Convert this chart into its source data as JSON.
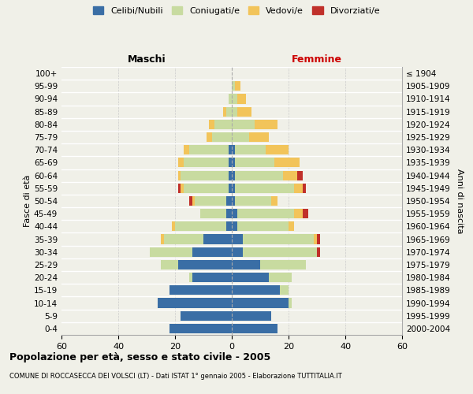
{
  "age_groups": [
    "0-4",
    "5-9",
    "10-14",
    "15-19",
    "20-24",
    "25-29",
    "30-34",
    "35-39",
    "40-44",
    "45-49",
    "50-54",
    "55-59",
    "60-64",
    "65-69",
    "70-74",
    "75-79",
    "80-84",
    "85-89",
    "90-94",
    "95-99",
    "100+"
  ],
  "birth_years": [
    "2000-2004",
    "1995-1999",
    "1990-1994",
    "1985-1989",
    "1980-1984",
    "1975-1979",
    "1970-1974",
    "1965-1969",
    "1960-1964",
    "1955-1959",
    "1950-1954",
    "1945-1949",
    "1940-1944",
    "1935-1939",
    "1930-1934",
    "1925-1929",
    "1920-1924",
    "1915-1919",
    "1910-1914",
    "1905-1909",
    "≤ 1904"
  ],
  "male": {
    "celibi": [
      22,
      18,
      26,
      22,
      14,
      19,
      14,
      10,
      2,
      2,
      2,
      1,
      1,
      1,
      1,
      0,
      0,
      0,
      0,
      0,
      0
    ],
    "coniugati": [
      0,
      0,
      0,
      0,
      1,
      6,
      15,
      14,
      18,
      9,
      11,
      16,
      17,
      16,
      14,
      7,
      6,
      2,
      1,
      0,
      0
    ],
    "vedovi": [
      0,
      0,
      0,
      0,
      0,
      0,
      0,
      1,
      1,
      0,
      1,
      1,
      1,
      2,
      2,
      2,
      2,
      1,
      0,
      0,
      0
    ],
    "divorziati": [
      0,
      0,
      0,
      0,
      0,
      0,
      0,
      0,
      0,
      0,
      1,
      1,
      0,
      0,
      0,
      0,
      0,
      0,
      0,
      0,
      0
    ]
  },
  "female": {
    "nubili": [
      16,
      14,
      20,
      17,
      13,
      10,
      4,
      4,
      2,
      2,
      1,
      1,
      1,
      1,
      1,
      0,
      0,
      0,
      0,
      0,
      0
    ],
    "coniugate": [
      0,
      0,
      1,
      3,
      8,
      16,
      26,
      25,
      18,
      20,
      13,
      21,
      17,
      14,
      11,
      6,
      8,
      2,
      2,
      1,
      0
    ],
    "vedove": [
      0,
      0,
      0,
      0,
      0,
      0,
      0,
      1,
      2,
      3,
      2,
      3,
      5,
      9,
      8,
      7,
      8,
      5,
      3,
      2,
      0
    ],
    "divorziate": [
      0,
      0,
      0,
      0,
      0,
      0,
      1,
      1,
      0,
      2,
      0,
      1,
      2,
      0,
      0,
      0,
      0,
      0,
      0,
      0,
      0
    ]
  },
  "colors": {
    "celibi": "#3a6ea5",
    "coniugati": "#c8dba0",
    "vedovi": "#f2c45a",
    "divorziati": "#c0302a"
  },
  "xlim": 60,
  "title": "Popolazione per età, sesso e stato civile - 2005",
  "subtitle": "COMUNE DI ROCCASECCA DEI VOLSCI (LT) - Dati ISTAT 1° gennaio 2005 - Elaborazione TUTTITALIA.IT",
  "ylabel_left": "Fasce di età",
  "ylabel_right": "Anni di nascita",
  "bg_color": "#f0f0e8",
  "bar_height": 0.75
}
